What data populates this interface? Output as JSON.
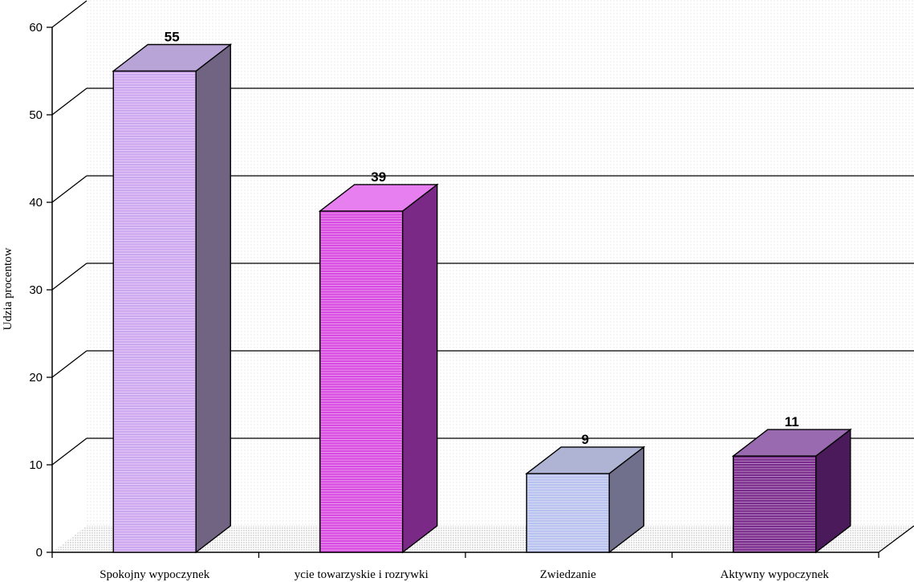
{
  "chart_data": {
    "type": "bar",
    "categories": [
      "Spokojny wypoczynek",
      "ycie towarzyskie i rozrywki",
      "Zwiedzanie",
      "Aktywny wypoczynek"
    ],
    "values": [
      55,
      39,
      9,
      11
    ],
    "data_labels": [
      "55",
      "39",
      "9",
      "11"
    ],
    "ylabel": "Udzia  procentow",
    "ylim": [
      0,
      60
    ],
    "yticks": [
      0,
      10,
      20,
      30,
      40,
      50,
      60
    ],
    "ytick_labels": [
      "0",
      "10",
      "20",
      "30",
      "40",
      "50",
      "60"
    ],
    "grid": true,
    "style": "3d",
    "colors": [
      {
        "front": "#cda6f0",
        "side": "#706482",
        "top": "#b8a4d6"
      },
      {
        "front": "#d84ae0",
        "side": "#7a2a86",
        "top": "#e87ff0"
      },
      {
        "front": "#b8c2ee",
        "side": "#70708c",
        "top": "#b0b4d4"
      },
      {
        "front": "#7a2a8c",
        "side": "#4a1a5a",
        "top": "#9a6ab0"
      }
    ]
  }
}
